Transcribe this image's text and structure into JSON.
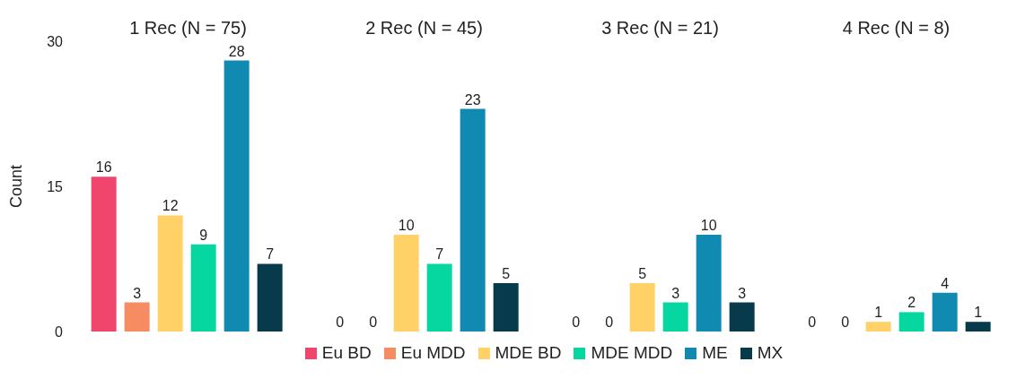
{
  "chart_data": {
    "type": "bar",
    "ylabel": "Count",
    "categories": [
      "1 Rec (N = 75)",
      "2 Rec (N = 45)",
      "3 Rec (N = 21)",
      "4 Rec (N = 8)"
    ],
    "ylim": [
      0,
      30
    ],
    "yticks": [
      0,
      15,
      30
    ],
    "data_labels": true,
    "legend": "bottom",
    "series": [
      {
        "name": "Eu BD",
        "color": "#f0466e",
        "values": [
          16,
          0,
          0,
          0
        ]
      },
      {
        "name": "Eu MDD",
        "color": "#f78c63",
        "values": [
          3,
          0,
          0,
          0
        ]
      },
      {
        "name": "MDE BD",
        "color": "#ffd166",
        "values": [
          12,
          10,
          5,
          1
        ]
      },
      {
        "name": "MDE MDD",
        "color": "#06d6a0",
        "values": [
          9,
          7,
          3,
          2
        ]
      },
      {
        "name": "ME",
        "color": "#118ab2",
        "values": [
          28,
          23,
          10,
          4
        ]
      },
      {
        "name": "MX",
        "color": "#073b4c",
        "values": [
          7,
          5,
          3,
          1
        ]
      }
    ]
  }
}
